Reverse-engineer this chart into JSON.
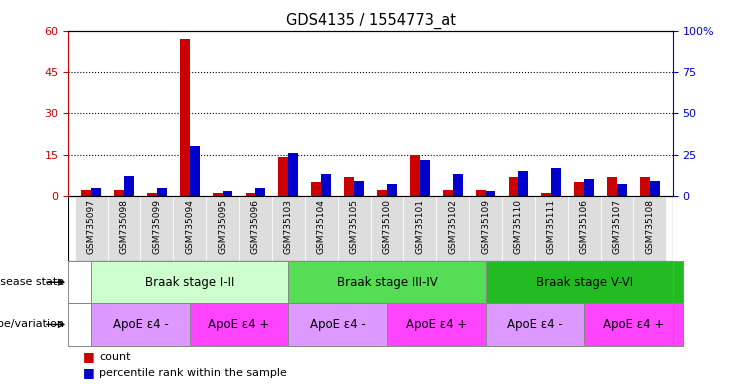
{
  "title": "GDS4135 / 1554773_at",
  "samples": [
    "GSM735097",
    "GSM735098",
    "GSM735099",
    "GSM735094",
    "GSM735095",
    "GSM735096",
    "GSM735103",
    "GSM735104",
    "GSM735105",
    "GSM735100",
    "GSM735101",
    "GSM735102",
    "GSM735109",
    "GSM735110",
    "GSM735111",
    "GSM735106",
    "GSM735107",
    "GSM735108"
  ],
  "count": [
    2,
    2,
    1,
    57,
    1,
    1,
    14,
    5,
    7,
    2,
    15,
    2,
    2,
    7,
    1,
    5,
    7,
    7
  ],
  "percentile": [
    5,
    12,
    5,
    30,
    3,
    5,
    26,
    13,
    9,
    7,
    22,
    13,
    3,
    15,
    17,
    10,
    7,
    9
  ],
  "ylim_left": [
    0,
    60
  ],
  "ylim_right": [
    0,
    100
  ],
  "yticks_left": [
    0,
    15,
    30,
    45,
    60
  ],
  "ytick_labels_left": [
    "0",
    "15",
    "30",
    "45",
    "60"
  ],
  "yticks_right": [
    0,
    25,
    50,
    75,
    100
  ],
  "ytick_labels_right": [
    "0",
    "25",
    "50",
    "75",
    "100%"
  ],
  "bar_color_red": "#cc0000",
  "bar_color_blue": "#0000cc",
  "bar_width": 0.3,
  "disease_state_groups": [
    {
      "label": "Braak stage I-II",
      "start": 0,
      "end": 6,
      "color": "#ccffcc"
    },
    {
      "label": "Braak stage III-IV",
      "start": 6,
      "end": 12,
      "color": "#55dd55"
    },
    {
      "label": "Braak stage V-VI",
      "start": 12,
      "end": 18,
      "color": "#22bb22"
    }
  ],
  "genotype_groups": [
    {
      "label": "ApoE ε4 -",
      "start": 0,
      "end": 3,
      "color": "#dd99ff"
    },
    {
      "label": "ApoE ε4 +",
      "start": 3,
      "end": 6,
      "color": "#ff44ff"
    },
    {
      "label": "ApoE ε4 -",
      "start": 6,
      "end": 9,
      "color": "#dd99ff"
    },
    {
      "label": "ApoE ε4 +",
      "start": 9,
      "end": 12,
      "color": "#ff44ff"
    },
    {
      "label": "ApoE ε4 -",
      "start": 12,
      "end": 15,
      "color": "#dd99ff"
    },
    {
      "label": "ApoE ε4 +",
      "start": 15,
      "end": 18,
      "color": "#ff44ff"
    }
  ],
  "disease_label": "disease state",
  "genotype_label": "genotype/variation",
  "legend_count": "count",
  "legend_percentile": "percentile rank within the sample",
  "axis_color_left": "#cc0000",
  "axis_color_right": "#0000cc",
  "tick_bg_color": "#dddddd",
  "spine_color": "#000000"
}
